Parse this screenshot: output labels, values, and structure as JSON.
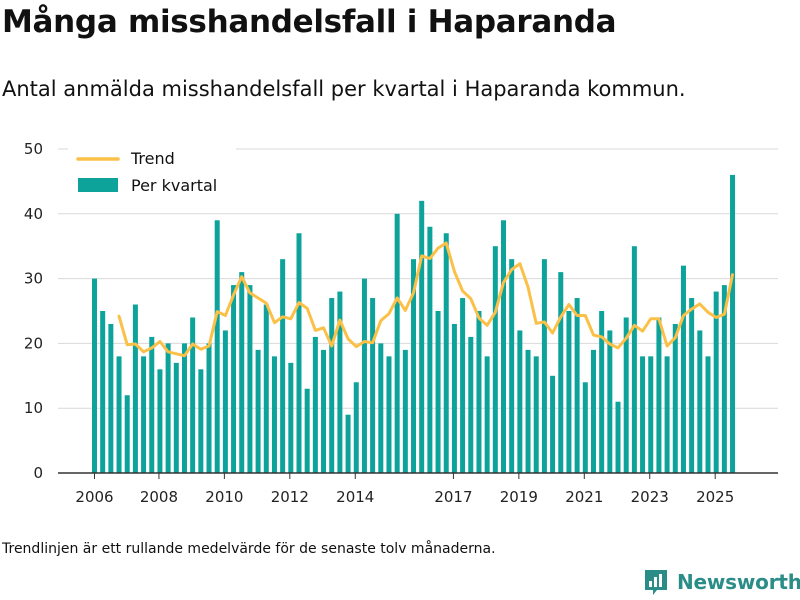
{
  "title": "Många misshandelsfall i Haparanda",
  "subtitle": "Antal anmälda misshandelsfall per kvartal i Haparanda kommun.",
  "footnote": "Trendlinjen är ett rullande medelvärde för de senaste tolv månaderna.",
  "brand": {
    "name": "Newsworthy",
    "icon": "bar-chart-logo-icon"
  },
  "colors": {
    "bar": "#0da39b",
    "trend": "#fbc047",
    "grid": "#d9d9d9",
    "axis": "#333333",
    "brand": "#2b8d87"
  },
  "chart_data": {
    "type": "bar",
    "ylim": [
      0,
      50
    ],
    "yticks": [
      0,
      10,
      20,
      30,
      40,
      50
    ],
    "xticks": [
      {
        "label": "2006",
        "index": 0
      },
      {
        "label": "2008",
        "index": 8
      },
      {
        "label": "2010",
        "index": 16
      },
      {
        "label": "2012",
        "index": 24
      },
      {
        "label": "2014",
        "index": 32
      },
      {
        "label": "2017",
        "index": 44
      },
      {
        "label": "2019",
        "index": 52
      },
      {
        "label": "2021",
        "index": 60
      },
      {
        "label": "2023",
        "index": 68
      },
      {
        "label": "2025",
        "index": 76
      }
    ],
    "legend": {
      "position": "top-left",
      "trend_label": "Trend",
      "bars_label": "Per kvartal"
    },
    "series": [
      {
        "name": "Per kvartal",
        "type": "bar",
        "values": [
          30,
          25,
          23,
          18,
          12,
          26,
          18,
          21,
          16,
          20,
          17,
          20,
          24,
          16,
          20,
          39,
          22,
          29,
          31,
          29,
          19,
          26,
          18,
          33,
          17,
          37,
          13,
          21,
          19,
          27,
          28,
          9,
          14,
          30,
          27,
          20,
          18,
          40,
          19,
          33,
          42,
          38,
          25,
          37,
          23,
          27,
          21,
          25,
          18,
          35,
          39,
          33,
          22,
          19,
          18,
          33,
          15,
          31,
          25,
          27,
          14,
          19,
          25,
          22,
          11,
          24,
          35,
          18,
          18,
          24,
          18,
          23,
          32,
          27,
          22,
          18,
          28,
          29,
          46
        ]
      },
      {
        "name": "Trend",
        "type": "line",
        "start_index": 3,
        "values": [
          24.2,
          19.8,
          19.9,
          18.7,
          19.3,
          20.3,
          18.7,
          18.4,
          18.1,
          19.9,
          19.1,
          19.6,
          24.9,
          24.3,
          27.5,
          30.3,
          27.8,
          27.0,
          26.2,
          23.2,
          24.1,
          23.8,
          26.3,
          25.4,
          22.0,
          22.4,
          19.6,
          23.6,
          20.7,
          19.5,
          20.3,
          20.1,
          23.5,
          24.6,
          27.0,
          25.1,
          27.8,
          33.5,
          33.1,
          34.7,
          35.5,
          31.1,
          28.1,
          26.9,
          23.9,
          22.8,
          24.8,
          29.4,
          31.4,
          32.3,
          28.7,
          23.1,
          23.3,
          21.6,
          24.1,
          26.0,
          24.3,
          24.3,
          21.3,
          21.0,
          19.9,
          19.3,
          20.8,
          22.8,
          21.9,
          23.8,
          23.8,
          19.6,
          20.9,
          24.3,
          25.3,
          26.1,
          24.8,
          24.0,
          24.5,
          30.6
        ]
      }
    ]
  }
}
